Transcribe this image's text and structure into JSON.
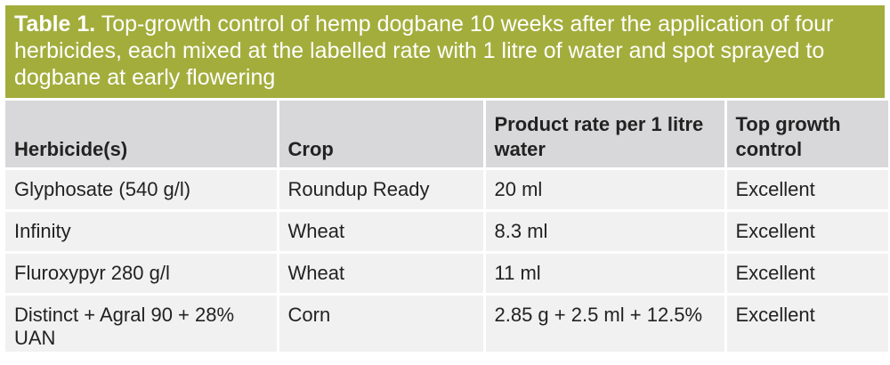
{
  "caption": {
    "label": "Table 1.",
    "text": "Top-growth control of hemp dogbane 10 weeks after the application of four herbicides, each mixed at the labelled rate with 1 litre of water and spot sprayed to dogbane at early flowering"
  },
  "table": {
    "headers": [
      "Herbicide(s)",
      "Crop",
      "Product rate per 1 litre water",
      "Top growth control"
    ],
    "rows": [
      [
        "Glyphosate (540 g/l)",
        "Roundup Ready",
        "20 ml",
        "Excellent"
      ],
      [
        "Infinity",
        "Wheat",
        "8.3 ml",
        "Excellent"
      ],
      [
        "Fluroxypyr 280 g/l",
        "Wheat",
        "11 ml",
        "Excellent"
      ],
      [
        "Distinct + Agral 90 + 28% UAN",
        "Corn",
        "2.85 g + 2.5 ml + 12.5%",
        "Excellent"
      ]
    ]
  },
  "colors": {
    "caption_bg": "#a3ad3c",
    "header_bg": "#d8d8da",
    "row_bg": "#f1f1f2"
  }
}
